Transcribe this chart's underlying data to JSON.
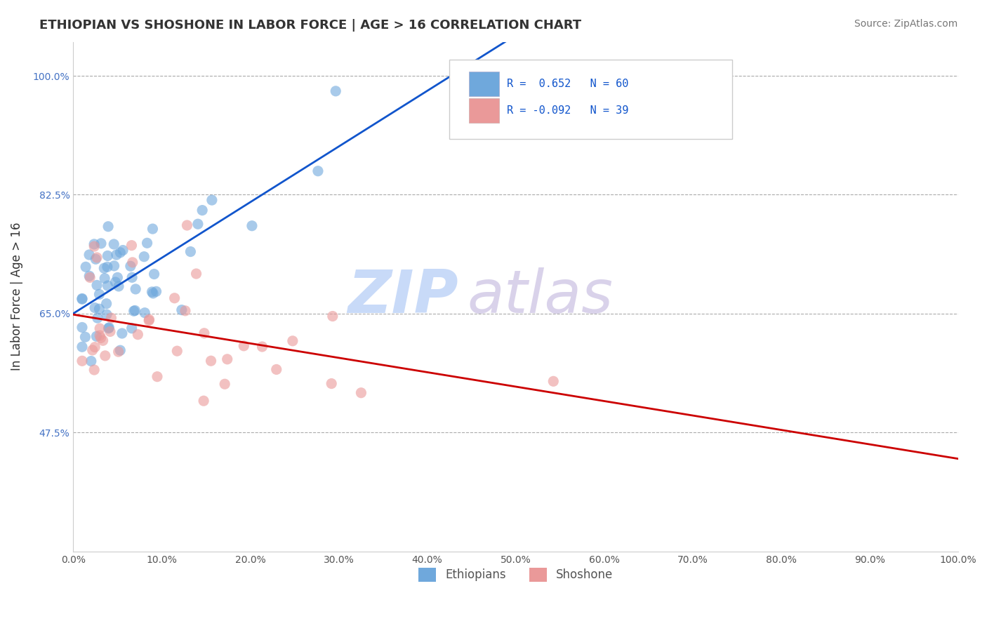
{
  "title": "ETHIOPIAN VS SHOSHONE IN LABOR FORCE | AGE > 16 CORRELATION CHART",
  "source": "Source: ZipAtlas.com",
  "ylabel": "In Labor Force | Age > 16",
  "xlim": [
    0.0,
    1.0
  ],
  "ylim": [
    0.3,
    1.05
  ],
  "yticks": [
    0.475,
    0.65,
    0.825,
    1.0
  ],
  "ytick_labels": [
    "47.5%",
    "65.0%",
    "82.5%",
    "100.0%"
  ],
  "xticks": [
    0.0,
    0.1,
    0.2,
    0.3,
    0.4,
    0.5,
    0.6,
    0.7,
    0.8,
    0.9,
    1.0
  ],
  "xtick_labels": [
    "0.0%",
    "10.0%",
    "20.0%",
    "30.0%",
    "40.0%",
    "50.0%",
    "60.0%",
    "70.0%",
    "80.0%",
    "90.0%",
    "100.0%"
  ],
  "blue_R": 0.652,
  "blue_N": 60,
  "pink_R": -0.092,
  "pink_N": 39,
  "blue_color": "#6fa8dc",
  "pink_color": "#ea9999",
  "blue_line_color": "#1155cc",
  "pink_line_color": "#cc0000",
  "background_color": "#ffffff",
  "legend_text_color": "#1155cc"
}
